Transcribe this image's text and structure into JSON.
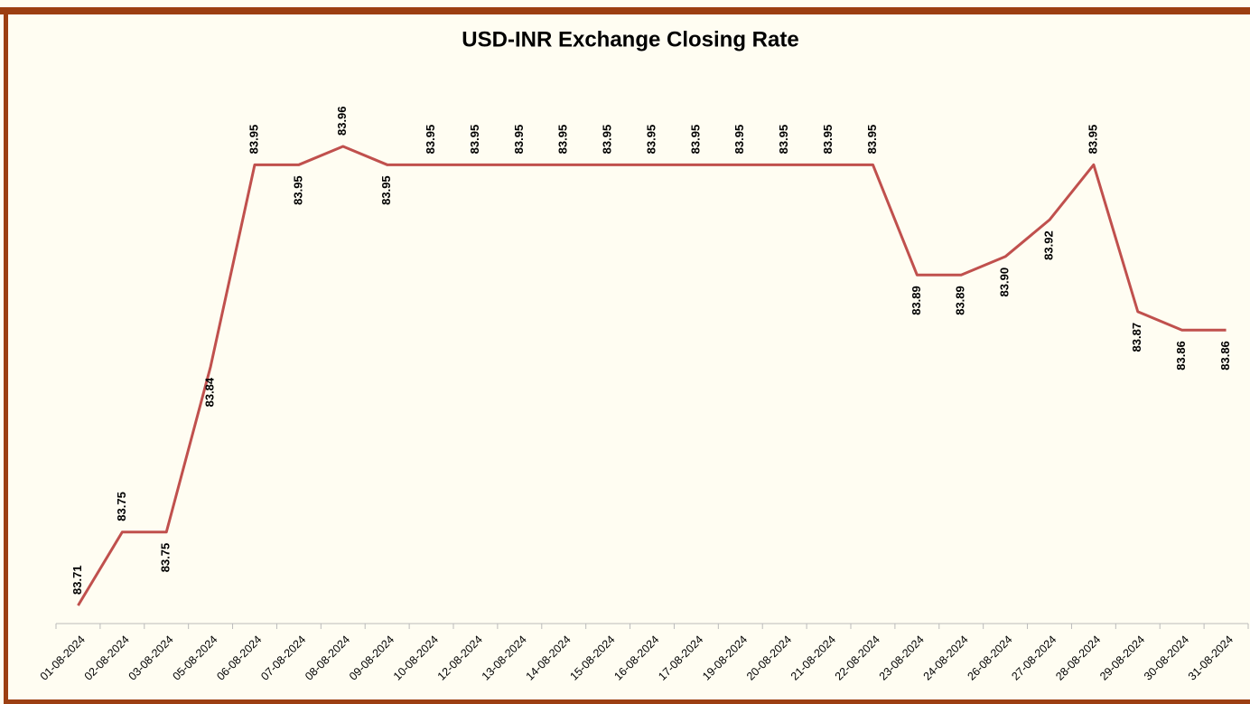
{
  "chart_data": {
    "type": "line",
    "title": "USD-INR Exchange Closing Rate",
    "categories": [
      "01-08-2024",
      "02-08-2024",
      "03-08-2024",
      "05-08-2024",
      "06-08-2024",
      "07-08-2024",
      "08-08-2024",
      "09-08-2024",
      "10-08-2024",
      "12-08-2024",
      "13-08-2024",
      "14-08-2024",
      "15-08-2024",
      "16-08-2024",
      "17-08-2024",
      "19-08-2024",
      "20-08-2024",
      "21-08-2024",
      "22-08-2024",
      "23-08-2024",
      "24-08-2024",
      "26-08-2024",
      "27-08-2024",
      "28-08-2024",
      "29-08-2024",
      "30-08-2024",
      "31-08-2024"
    ],
    "values": [
      83.71,
      83.75,
      83.75,
      83.84,
      83.95,
      83.95,
      83.96,
      83.95,
      83.95,
      83.95,
      83.95,
      83.95,
      83.95,
      83.95,
      83.95,
      83.95,
      83.95,
      83.95,
      83.95,
      83.89,
      83.89,
      83.9,
      83.92,
      83.95,
      83.87,
      83.86,
      83.86
    ],
    "value_labels": [
      "83.71",
      "83.75",
      "83.75",
      "83.84",
      "83.95",
      "83.95",
      "83.96",
      "83.95",
      "83.95",
      "83.95",
      "83.95",
      "83.95",
      "83.95",
      "83.95",
      "83.95",
      "83.95",
      "83.95",
      "83.95",
      "83.95",
      "83.89",
      "83.89",
      "83.90",
      "83.92",
      "83.95",
      "83.87",
      "83.86",
      "83.86"
    ],
    "color": "#c0504d"
  }
}
